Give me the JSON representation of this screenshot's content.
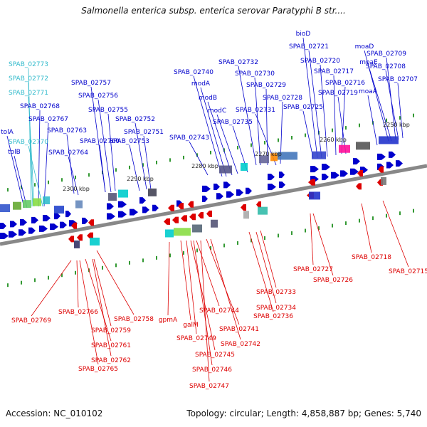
{
  "title": "Salmonella enterica subsp. enterica serovar Paratyphi B str....",
  "footer": {
    "accession": "Accession: NC_010102",
    "summary": "Topology: circular; Length: 4,858,887 bp; Genes: 5,740"
  },
  "colors": {
    "forward": "#0000cc",
    "reverse": "#dd0000",
    "rna": "#33bbcc",
    "backbone": "#888888",
    "ticks": "#339933"
  },
  "ticks": [
    "2300 kbp",
    "2290 kbp",
    "2280 kbp",
    "2270 kbp",
    "2260 kbp",
    "2250 kbp"
  ],
  "top_labels": [
    "SPAB_02773",
    "SPAB_02772",
    "SPAB_02771",
    "SPAB_02768",
    "SPAB_02767",
    "tolA",
    "SPAB_02770",
    "tolB",
    "SPAB_02763",
    "SPAB_02764",
    "SPAB_02760",
    "SPAB_02753",
    "SPAB_02751",
    "SPAB_02752",
    "SPAB_02755",
    "SPAB_02756",
    "SPAB_02757",
    "SPAB_02743",
    "SPAB_02740",
    "modA",
    "modB",
    "modC",
    "SPAB_02735",
    "SPAB_02732",
    "SPAB_02730",
    "SPAB_02729",
    "SPAB_02731",
    "SPAB_02728",
    "SPAB_02725",
    "bioD",
    "SPAB_02721",
    "SPAB_02720",
    "SPAB_02717",
    "SPAB_02716",
    "SPAB_02719",
    "moaA",
    "moaD",
    "moaE",
    "SPAB_02709",
    "SPAB_02708",
    "SPAB_02707"
  ],
  "bottom_labels": [
    "SPAB_02769",
    "SPAB_02766",
    "SPAB_02759",
    "SPAB_02758",
    "SPAB_02761",
    "SPAB_02762",
    "SPAB_02765",
    "gpmA",
    "galM",
    "SPAB_02749",
    "SPAB_02744",
    "SPAB_02745",
    "SPAB_02746",
    "SPAB_02747",
    "SPAB_02741",
    "SPAB_02742",
    "SPAB_02736",
    "SPAB_02734",
    "SPAB_02733",
    "SPAB_02727",
    "SPAB_02726",
    "SPAB_02718",
    "SPAB_02715"
  ]
}
